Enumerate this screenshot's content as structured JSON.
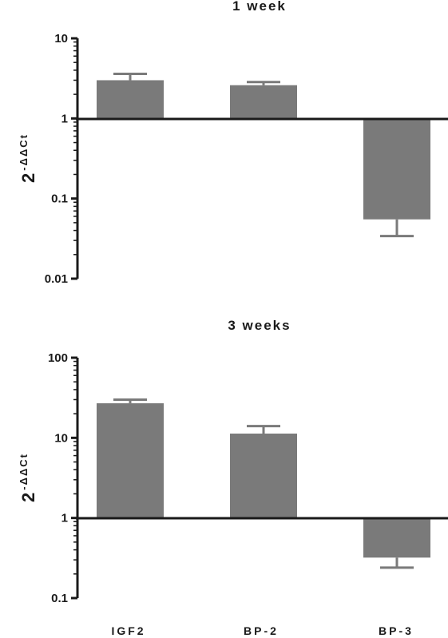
{
  "chart_data": [
    {
      "type": "bar",
      "title": "1 week",
      "ylabel": {
        "base": "2",
        "exponent": "-ΔΔCt"
      },
      "yscale": "log",
      "ylim": [
        0.01,
        10
      ],
      "yticks": [
        "10",
        "1",
        "0.1",
        "0.01"
      ],
      "baseline": 1,
      "categories": [
        "IGF2",
        "BP-2",
        "BP-3"
      ],
      "values": [
        3.0,
        2.6,
        0.055
      ],
      "error_bars": [
        3.6,
        2.85,
        0.034
      ],
      "bar_color": "#7a7a7a"
    },
    {
      "type": "bar",
      "title": "3 weeks",
      "ylabel": {
        "base": "2",
        "exponent": "-ΔΔCt"
      },
      "yscale": "log",
      "ylim": [
        0.1,
        100
      ],
      "yticks": [
        "100",
        "10",
        "1",
        "0.1"
      ],
      "baseline": 1,
      "categories": [
        "IGF2",
        "BP-2",
        "BP-3"
      ],
      "values": [
        27,
        11.3,
        0.32
      ],
      "error_bars": [
        30,
        14,
        0.24
      ],
      "bar_color": "#7a7a7a"
    }
  ]
}
